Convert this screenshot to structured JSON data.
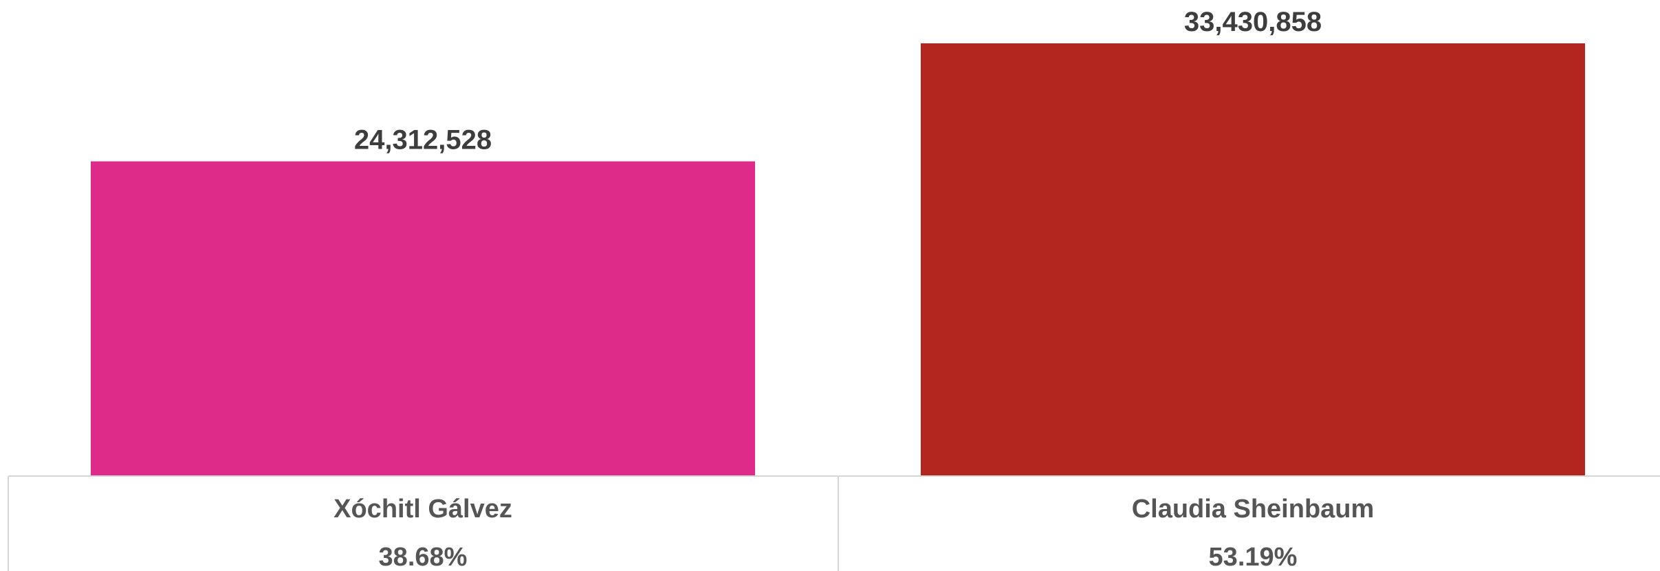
{
  "chart_data": {
    "type": "bar",
    "categories": [
      "Xóchitl Gálvez",
      "Claudia Sheinbaum"
    ],
    "values": [
      24312528,
      33430858
    ],
    "value_labels": [
      "24,312,528",
      "33,430,858"
    ],
    "percentages": [
      "38.68%",
      "53.19%"
    ],
    "colors": [
      "#de2b8a",
      "#b3251f"
    ],
    "title": "",
    "xlabel": "",
    "ylabel": "",
    "ylim": [
      0,
      33430858
    ],
    "grid": false,
    "legend": "none"
  }
}
